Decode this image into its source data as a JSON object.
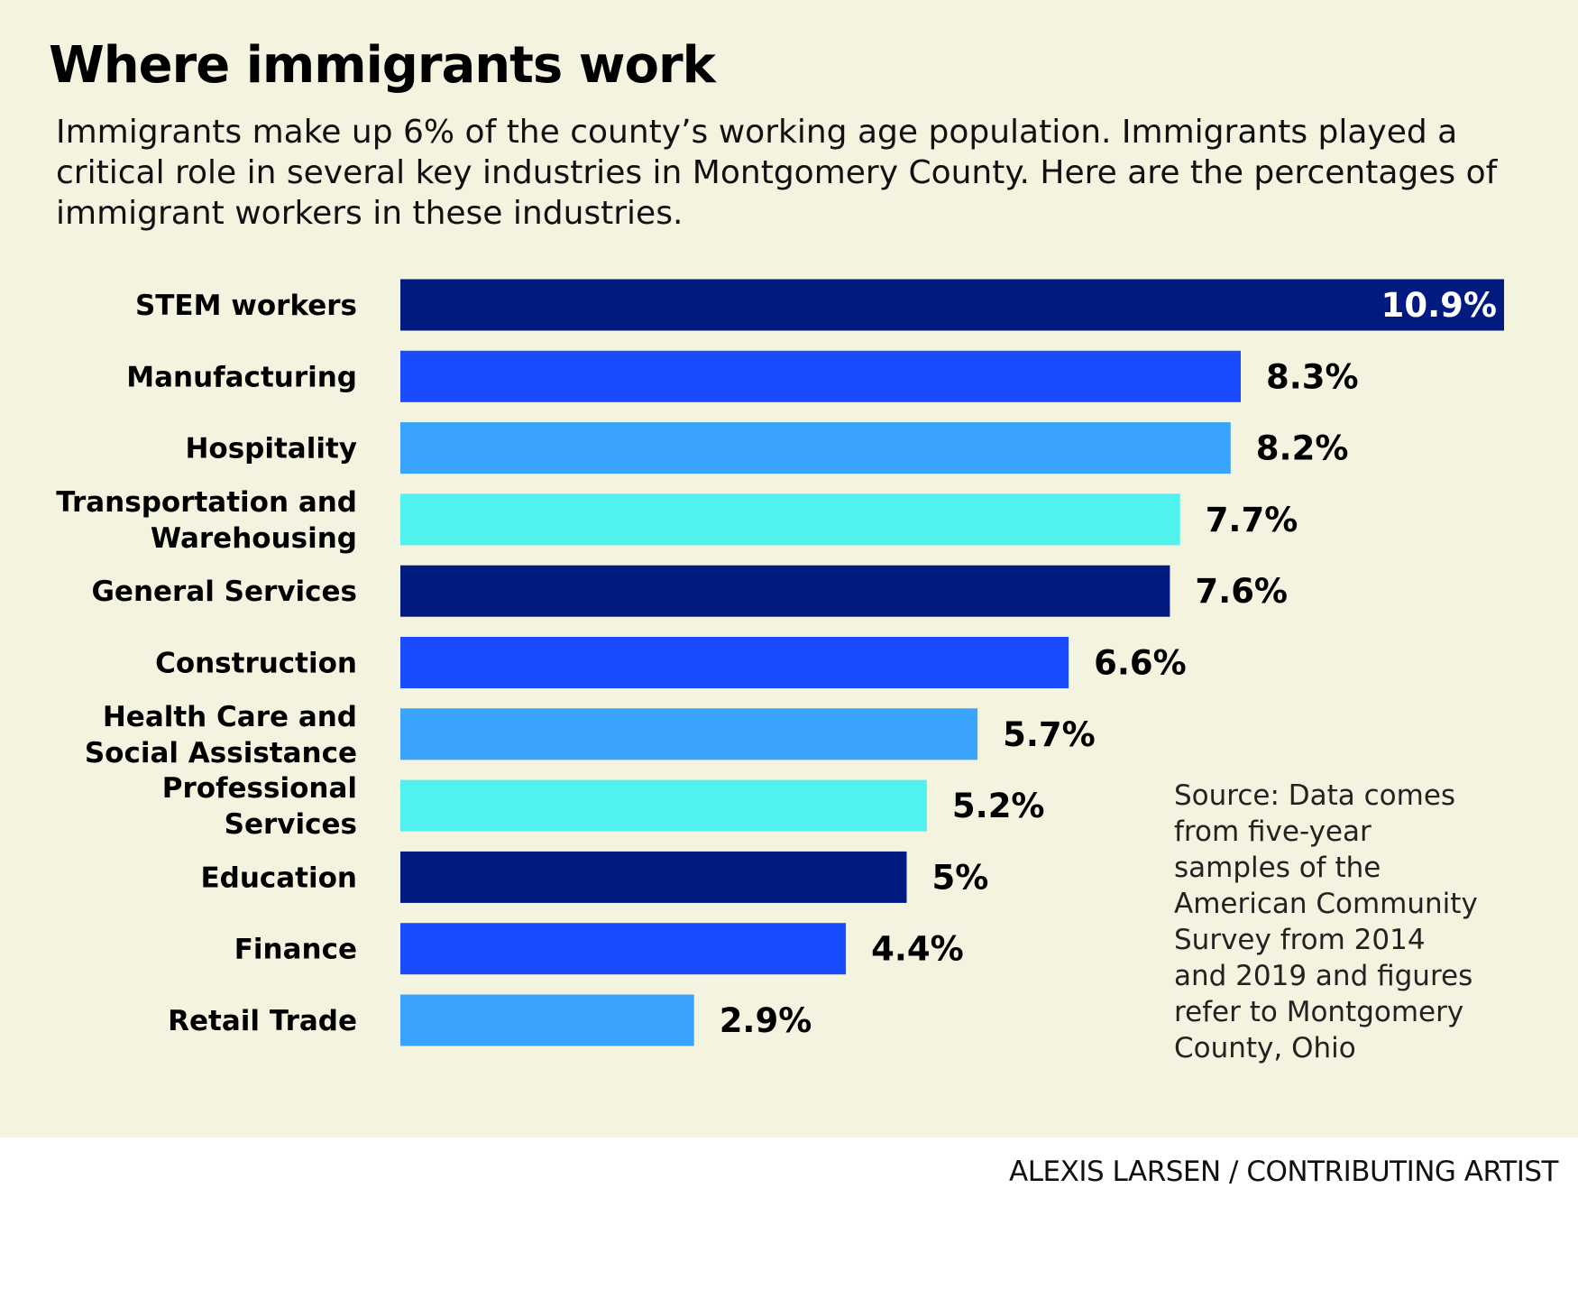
{
  "chart_data": {
    "type": "bar",
    "orientation": "horizontal",
    "title": "Where immigrants work",
    "subtitle": "Immigrants make up 6% of the county’s working age population. Immigrants played a critical role in several key industries in Montgomery County. Here are the percentages of immigrant workers in these industries.",
    "categories": [
      [
        "STEM workers"
      ],
      [
        "Manufacturing"
      ],
      [
        "Hospitality"
      ],
      [
        "Transportation and",
        "Warehousing"
      ],
      [
        "General Services"
      ],
      [
        "Construction"
      ],
      [
        "Health Care and",
        "Social Assistance"
      ],
      [
        "Professional",
        "Services"
      ],
      [
        "Education"
      ],
      [
        "Finance"
      ],
      [
        "Retail Trade"
      ]
    ],
    "values": [
      10.9,
      8.3,
      8.2,
      7.7,
      7.6,
      6.6,
      5.7,
      5.2,
      5,
      4.4,
      2.9
    ],
    "value_labels": [
      "10.9%",
      "8.3%",
      "8.2%",
      "7.7%",
      "7.6%",
      "6.6%",
      "5.7%",
      "5.2%",
      "5%",
      "4.4%",
      "2.9%"
    ],
    "bar_colors": [
      "#001a80",
      "#1a4cff",
      "#3aa3fb",
      "#50f2ee",
      "#001a80",
      "#1a4cff",
      "#3aa3fb",
      "#50f2ee",
      "#001a80",
      "#1a4cff",
      "#3aa3fb"
    ],
    "unit": "%",
    "xlim": [
      0,
      10.9
    ],
    "xlabel": "",
    "ylabel": "",
    "grid": false,
    "legend": "none"
  },
  "source_note": "Source: Data comes\nfrom five-year\nsamples of the\nAmerican Community\nSurvey from 2014\nand 2019 and figures\nrefer to Montgomery\nCounty, Ohio",
  "credit": "ALEXIS LARSEN / CONTRIBUTING ARTIST",
  "colors": {
    "background": "#f4f3df",
    "page": "#ffffff",
    "text": "#000000"
  }
}
